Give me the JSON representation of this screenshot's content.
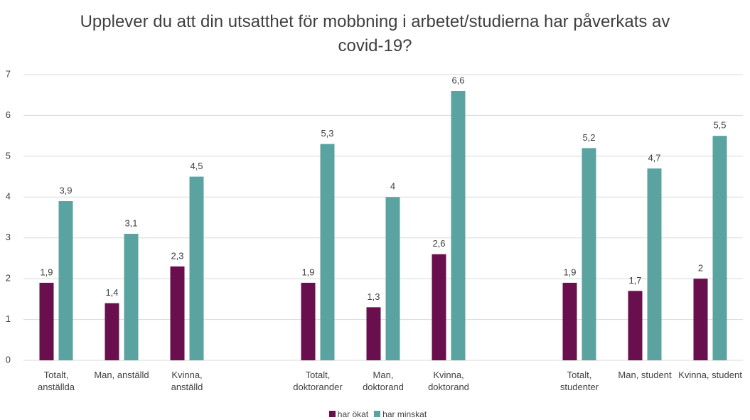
{
  "chart_data": {
    "type": "bar",
    "title": "Upplever du att din utsatthet för mobbning i arbetet/studierna har påverkats av covid-19?",
    "categories": [
      "Totalt, anställda",
      "Man, anställd",
      "Kvinna, anställd",
      null,
      "Totalt, doktorander",
      "Man, doktorand",
      "Kvinna, doktorand",
      null,
      "Totalt, studenter",
      "Man, student",
      "Kvinna, student"
    ],
    "series": [
      {
        "name": "har ökat",
        "color": "#6a0f4e",
        "values": [
          1.9,
          1.4,
          2.3,
          null,
          1.9,
          1.3,
          2.6,
          null,
          1.9,
          1.7,
          2
        ],
        "value_labels": [
          "1,9",
          "1,4",
          "2,3",
          null,
          "1,9",
          "1,3",
          "2,6",
          null,
          "1,9",
          "1,7",
          "2"
        ]
      },
      {
        "name": "har minskat",
        "color": "#5ba3a0",
        "values": [
          3.9,
          3.1,
          4.5,
          null,
          5.3,
          4,
          6.6,
          null,
          5.2,
          4.7,
          5.5
        ],
        "value_labels": [
          "3,9",
          "3,1",
          "4,5",
          null,
          "5,3",
          "4",
          "6,6",
          null,
          "5,2",
          "4,7",
          "5,5"
        ]
      }
    ],
    "ylim": [
      0,
      7
    ],
    "yticks": [
      0,
      1,
      2,
      3,
      4,
      5,
      6,
      7
    ],
    "grid": true,
    "legend": "bottom"
  }
}
